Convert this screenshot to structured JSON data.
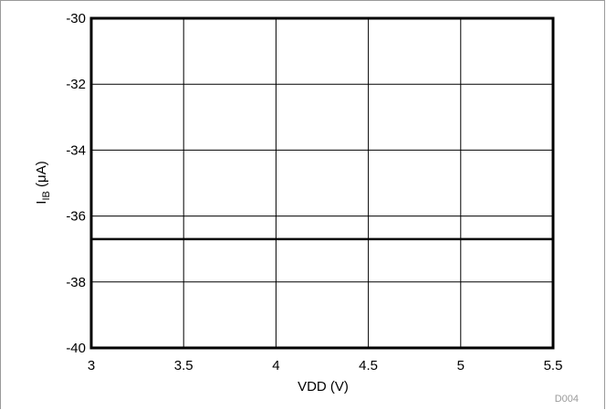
{
  "chart_data": {
    "type": "line",
    "title": "",
    "xlabel": "VDD (V)",
    "ylabel": {
      "main": "I",
      "sub": "IB",
      "unit": " (μA)"
    },
    "xlim": [
      3,
      5.5
    ],
    "ylim": [
      -40,
      -30
    ],
    "xticks": [
      3,
      3.5,
      4,
      4.5,
      5,
      5.5
    ],
    "xtick_labels": [
      "3",
      "3.5",
      "4",
      "4.5",
      "5",
      "5.5"
    ],
    "yticks": [
      -30,
      -32,
      -34,
      -36,
      -38,
      -40
    ],
    "ytick_labels": [
      "-30",
      "-32",
      "-34",
      "-36",
      "-38",
      "-40"
    ],
    "grid": true,
    "series": [
      {
        "x": [
          3,
          5.5
        ],
        "values": [
          -36.7,
          -36.7
        ],
        "color": "#000000"
      }
    ],
    "figure_code": "D004"
  }
}
